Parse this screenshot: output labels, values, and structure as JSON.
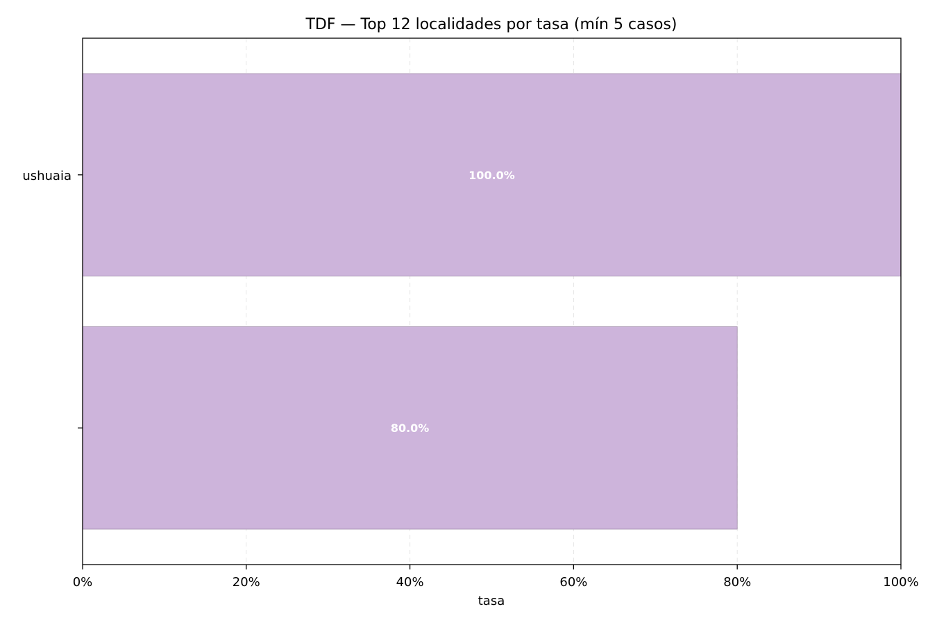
{
  "chart_data": {
    "type": "bar",
    "orientation": "horizontal",
    "title": "TDF — Top 12 localidades por tasa (mín 5 casos)",
    "xlabel": "tasa",
    "ylabel": "",
    "xlim": [
      0,
      1
    ],
    "x_ticks": [
      0,
      0.2,
      0.4,
      0.6,
      0.8,
      1.0
    ],
    "x_tick_labels": [
      "0%",
      "20%",
      "40%",
      "60%",
      "80%",
      "100%"
    ],
    "categories": [
      "ushuaia",
      ""
    ],
    "values": [
      1.0,
      0.8
    ],
    "value_labels": [
      "100.0%",
      "80.0%"
    ],
    "bar_color": "#cdb4db",
    "bar_edge_color": "#a08ba8",
    "grid": "x-dashed"
  }
}
